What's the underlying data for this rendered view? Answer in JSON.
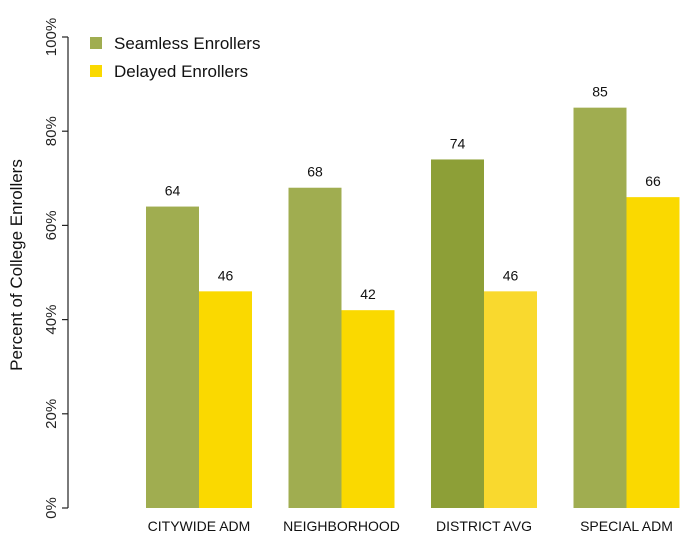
{
  "chart_data": {
    "type": "bar",
    "categories": [
      "CITYWIDE ADM",
      "NEIGHBORHOOD",
      "DISTRICT AVG",
      "SPECIAL ADM"
    ],
    "highlight_category": "DISTRICT AVG",
    "series": [
      {
        "name": "Seamless Enrollers",
        "values": [
          64,
          68,
          74,
          85
        ]
      },
      {
        "name": "Delayed Enrollers",
        "values": [
          46,
          42,
          46,
          66
        ]
      }
    ],
    "ylabel": "Percent of College Enrollers",
    "ylim": [
      0,
      100
    ],
    "yticks": [
      "0%",
      "20%",
      "40%",
      "60%",
      "80%",
      "100%"
    ],
    "grid": false,
    "legend_position": "top-left"
  },
  "colors": {
    "seamless": "#a0ad50",
    "delayed": "#fad900",
    "seamless_highlight": "#8d9f37",
    "delayed_highlight": "#f9d92e",
    "highlight_label": "#3d7a2a",
    "axis": "#222222"
  }
}
